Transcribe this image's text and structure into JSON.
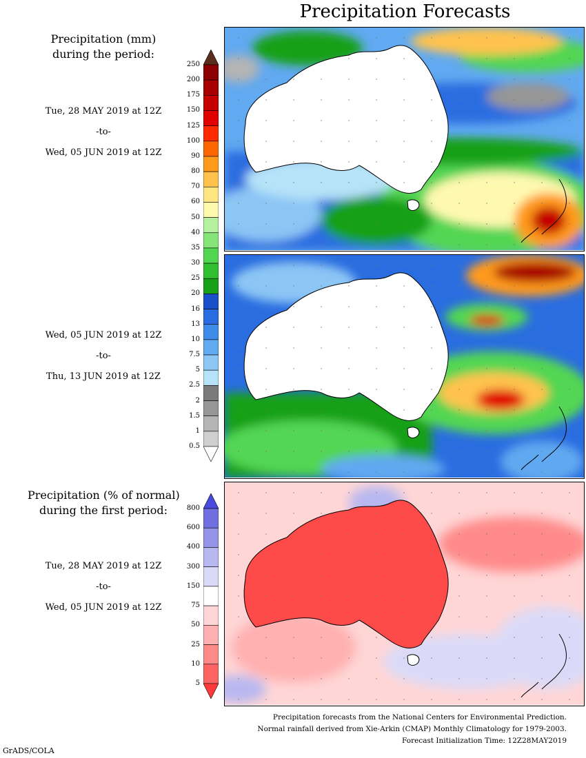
{
  "title": "Precipitation Forecasts",
  "panel1": {
    "heading": [
      "Precipitation (mm)",
      "during the period:"
    ],
    "start": "Tue, 28 MAY 2019 at 12Z",
    "sep": "-to-",
    "end": "Wed, 05 JUN 2019 at 12Z"
  },
  "panel2": {
    "start": "Wed, 05 JUN 2019 at 12Z",
    "sep": "-to-",
    "end": "Thu, 13 JUN 2019 at 12Z"
  },
  "panel3": {
    "heading": [
      "Precipitation (% of normal)",
      "during the first period:"
    ],
    "start": "Tue, 28 MAY 2019 at 12Z",
    "sep": "-to-",
    "end": "Wed, 05 JUN 2019 at 12Z"
  },
  "mm_scale": {
    "labels": [
      "250",
      "200",
      "175",
      "150",
      "125",
      "100",
      "90",
      "80",
      "70",
      "60",
      "50",
      "40",
      "35",
      "30",
      "25",
      "20",
      "16",
      "13",
      "10",
      "7.5",
      "5",
      "2.5",
      "2",
      "1.5",
      "1",
      "0.5"
    ],
    "colors": [
      "#5a2e1a",
      "#8b0000",
      "#a80000",
      "#c40000",
      "#e00000",
      "#ff2a00",
      "#ff6600",
      "#ff9a1a",
      "#ffc34d",
      "#ffe680",
      "#fff9b0",
      "#b4f0a0",
      "#86e478",
      "#52d652",
      "#2fbf2f",
      "#18a018",
      "#1a4fc9",
      "#2a6de0",
      "#3e8ce8",
      "#61a9f0",
      "#8cc6f5",
      "#b6e3f8",
      "#7a7a7a",
      "#969696",
      "#b4b4b4",
      "#cfcfcf",
      "#ffffff"
    ]
  },
  "pct_scale": {
    "labels": [
      "800",
      "600",
      "400",
      "300",
      "150",
      "75",
      "50",
      "25",
      "10",
      "5"
    ],
    "colors": [
      "#4a4adf",
      "#6f6fe0",
      "#9494e8",
      "#b8b8f0",
      "#dadaf8",
      "#ffffff",
      "#ffd6d6",
      "#ffb0b0",
      "#ff8a8a",
      "#ff6464",
      "#ff3a3a"
    ]
  },
  "footer": [
    "Precipitation forecasts from the National Centers for Environmental Prediction.",
    "Normal rainfall derived from Xie-Arkin (CMAP) Monthly Climatology for 1979-2003.",
    "Forecast Initialization Time: 12Z28MAY2019"
  ],
  "credit": "GrADS/COLA"
}
